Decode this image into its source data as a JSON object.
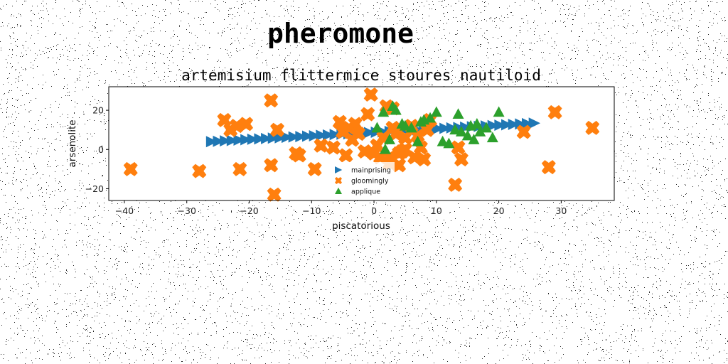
{
  "chart_data": {
    "type": "scatter",
    "suptitle": "pheromone",
    "title": "artemisium flittermice stoures nautiloid",
    "xlabel": "piscatorious",
    "ylabel": "arsenolite",
    "xlim": [
      -42.5,
      38.5
    ],
    "ylim": [
      -26,
      32
    ],
    "xticks": [
      -40,
      -30,
      -20,
      -10,
      0,
      10,
      20,
      30
    ],
    "yticks": [
      -20,
      0,
      20
    ],
    "grid": false,
    "legend": "lower-center",
    "series": [
      {
        "name": "mainprising",
        "marker": "triangle-right",
        "color": "#1f77b4",
        "x": [
          -26.0,
          -24.9,
          -23.8,
          -22.7,
          -21.6,
          -20.5,
          -19.4,
          -18.3,
          -17.2,
          -16.1,
          -15.0,
          -13.9,
          -12.8,
          -11.7,
          -10.6,
          -9.5,
          -8.4,
          -7.3,
          -6.2,
          -5.1,
          -4.0,
          -2.9,
          -1.8,
          -0.7,
          0.4,
          1.5,
          2.6,
          3.7,
          4.8,
          5.9,
          7.0,
          8.1,
          9.2,
          10.3,
          11.4,
          12.5,
          13.6,
          14.7,
          15.8,
          16.9,
          18.0,
          19.1,
          20.2,
          21.3,
          22.4,
          23.5,
          24.6,
          25.7
        ],
        "y": [
          4.0,
          4.2,
          4.4,
          4.6,
          4.8,
          5.0,
          5.2,
          5.4,
          5.6,
          5.8,
          6.0,
          6.2,
          6.4,
          6.6,
          6.8,
          7.0,
          7.2,
          7.4,
          7.6,
          7.8,
          8.0,
          8.2,
          8.4,
          8.6,
          8.8,
          9.0,
          9.2,
          9.4,
          9.6,
          9.8,
          10.0,
          10.2,
          10.4,
          10.6,
          10.8,
          11.0,
          11.2,
          11.4,
          11.6,
          11.8,
          12.0,
          12.2,
          12.4,
          12.6,
          12.8,
          13.0,
          13.2,
          13.4
        ]
      },
      {
        "name": "gloomingly",
        "marker": "x-filled",
        "color": "#ff7f0e",
        "x": [
          -39,
          -28,
          -24,
          -23,
          -22,
          -21.5,
          -20.5,
          -16.5,
          -16.5,
          -16,
          -15.5,
          -12.5,
          -12,
          -9.5,
          -8.5,
          -6.5,
          -5.5,
          -5,
          -4.5,
          -4,
          -3.5,
          -3,
          -2.5,
          -1.5,
          -1,
          -0.5,
          0,
          0.5,
          1,
          1.5,
          2,
          2.5,
          2.5,
          3,
          3,
          3.5,
          4,
          4,
          4.5,
          5,
          5,
          6,
          6.5,
          7,
          7.5,
          8,
          8.5,
          9,
          13,
          13.5,
          14,
          24,
          28,
          29,
          35
        ],
        "y": [
          -10,
          -11,
          15,
          10,
          12,
          -10,
          13,
          25,
          -8,
          -23,
          10,
          -2,
          -3,
          -10,
          2,
          1,
          14,
          9,
          -3,
          11,
          5,
          13,
          8,
          -1,
          18,
          28,
          -2,
          2,
          -4,
          6,
          22,
          -4,
          -7,
          21,
          11,
          8,
          -8,
          -2,
          -1,
          6,
          0,
          12,
          -4,
          7,
          1,
          -5,
          10,
          15,
          -18,
          1,
          -5,
          9,
          -9,
          19,
          11
        ]
      },
      {
        "name": "applique",
        "marker": "triangle-up",
        "color": "#2ca02c",
        "x": [
          0.5,
          1.5,
          1.8,
          2.5,
          3,
          3.5,
          4.5,
          5,
          6,
          7,
          7.5,
          8,
          9,
          10,
          11,
          12,
          13,
          13.5,
          14,
          15,
          15.5,
          16,
          16.5,
          17,
          18,
          19,
          20
        ],
        "y": [
          11,
          19,
          0,
          5,
          22,
          20,
          13,
          12,
          11,
          4,
          14,
          15,
          16,
          19,
          4,
          3,
          10,
          18,
          9,
          7,
          12,
          5,
          13,
          9,
          11,
          6,
          19
        ]
      }
    ]
  }
}
